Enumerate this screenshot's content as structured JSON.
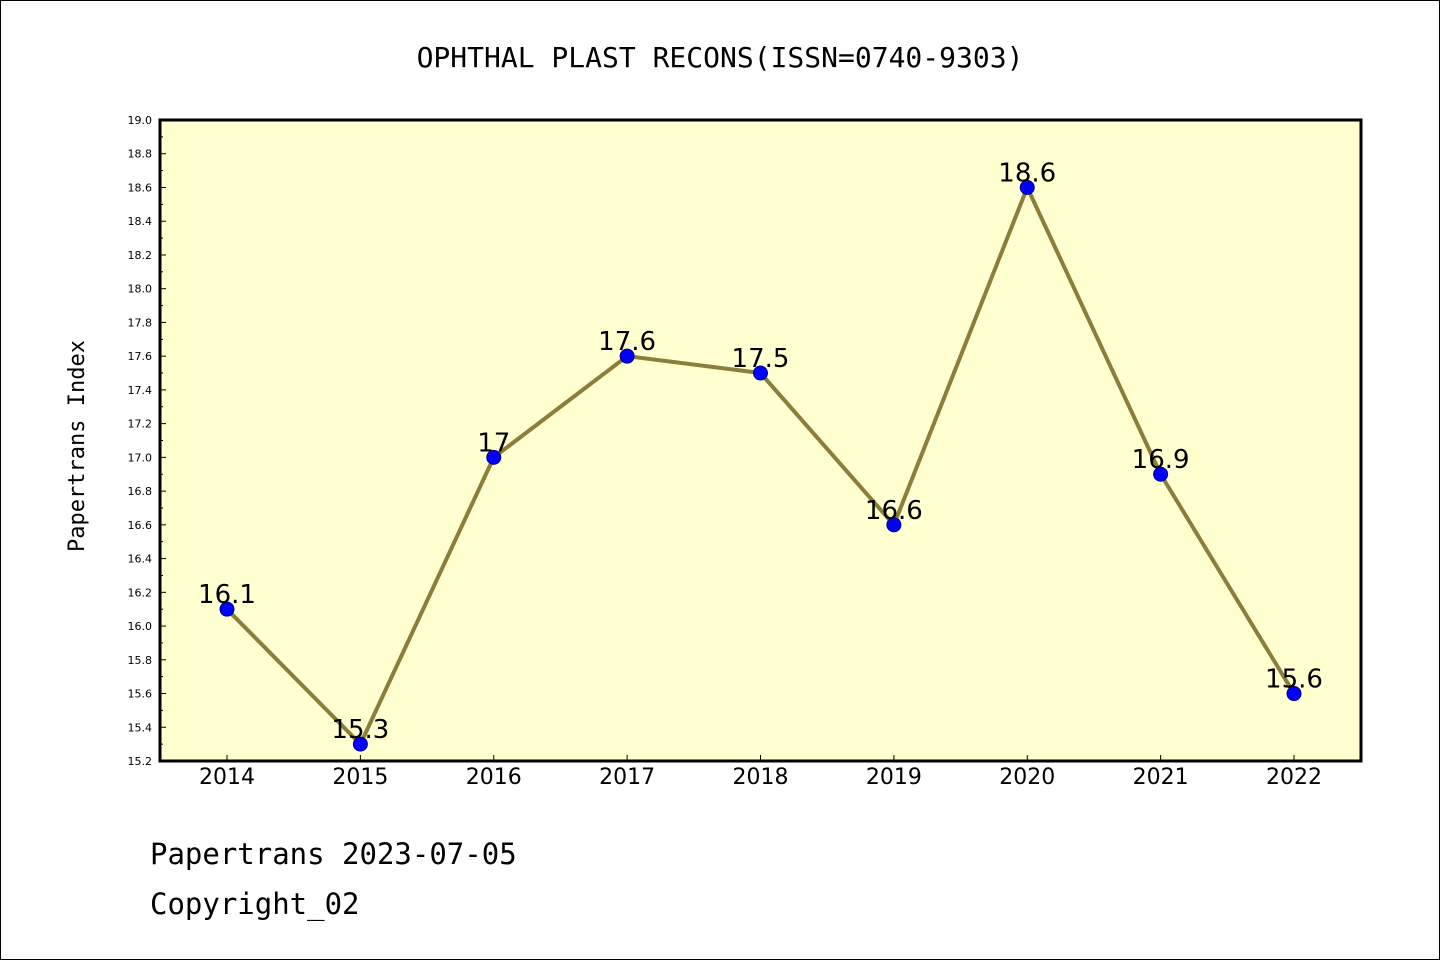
{
  "chart_data": {
    "type": "line",
    "title": "OPHTHAL PLAST RECONS(ISSN=0740-9303)",
    "ylabel": "Papertrans Index",
    "xlabel": "",
    "categories": [
      "2014",
      "2015",
      "2016",
      "2017",
      "2018",
      "2019",
      "2020",
      "2021",
      "2022"
    ],
    "values": [
      16.1,
      15.3,
      17.0,
      17.6,
      17.5,
      16.6,
      18.6,
      16.9,
      15.6
    ],
    "data_labels": [
      "16.1",
      "15.3",
      "17",
      "17.6",
      "17.5",
      "16.6",
      "18.6",
      "16.9",
      "15.6"
    ],
    "ylim": [
      15.2,
      19.0
    ],
    "yticks": [
      "15.2",
      "15.4",
      "15.6",
      "15.8",
      "16.0",
      "16.2",
      "16.4",
      "16.6",
      "16.8",
      "17.0",
      "17.2",
      "17.4",
      "17.6",
      "17.8",
      "18.0",
      "18.2",
      "18.4",
      "18.6",
      "18.8",
      "19.0"
    ],
    "grid": false,
    "colors": {
      "plot_background": "#ffffd0",
      "line": "#8b7d3a",
      "marker": "#0000ff"
    }
  },
  "footer": {
    "line1": "Papertrans 2023-07-05",
    "line2": "Copyright_02"
  }
}
